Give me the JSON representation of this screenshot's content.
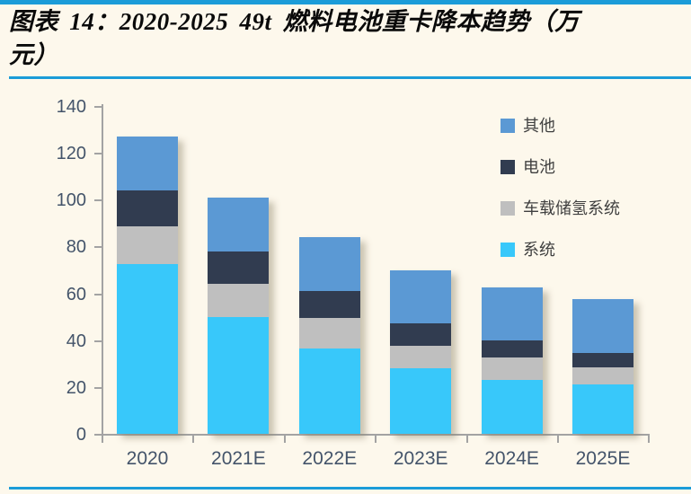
{
  "title": {
    "text": "图表 14：2020-2025 49t 燃料电池重卡降本趋势（万元）",
    "line1": "图表 14：2020-2025 49t 燃料电池重卡降本趋势（万",
    "line2": "元）"
  },
  "colors": {
    "background": "#FDF8EC",
    "rule_blue": "#1B9CD8",
    "axis": "#A3A3A3",
    "tick_label": "#44546A",
    "legend_text": "#3F3F3F",
    "title_text": "#0A0A0A"
  },
  "chart_data": {
    "type": "bar",
    "stacked": true,
    "title": "图表 14：2020-2025 49t 燃料电池重卡降本趋势（万元）",
    "unit": "万元",
    "categories": [
      "2020",
      "2021E",
      "2022E",
      "2023E",
      "2024E",
      "2025E"
    ],
    "series": [
      {
        "name": "系统",
        "color": "#38C8FA",
        "values": [
          72.5,
          50,
          36.5,
          28,
          23,
          21
        ]
      },
      {
        "name": "车载储氢系统",
        "color": "#BFBFBF",
        "values": [
          16,
          14,
          13,
          9.5,
          9.5,
          7.5
        ]
      },
      {
        "name": "电池",
        "color": "#313C50",
        "values": [
          15.5,
          14,
          11.5,
          9.5,
          7.5,
          6
        ]
      },
      {
        "name": "其他",
        "color": "#5B99D4",
        "values": [
          23,
          23,
          23,
          23,
          22.5,
          23
        ]
      }
    ],
    "legend": {
      "position": "top-right",
      "items": [
        "其他",
        "电池",
        "车载储氢系统",
        "系统"
      ]
    },
    "xlabel": "",
    "ylabel": "",
    "ylim": [
      0,
      140
    ],
    "yticks": [
      0,
      20,
      40,
      60,
      80,
      100,
      120,
      140
    ],
    "grid": false
  }
}
